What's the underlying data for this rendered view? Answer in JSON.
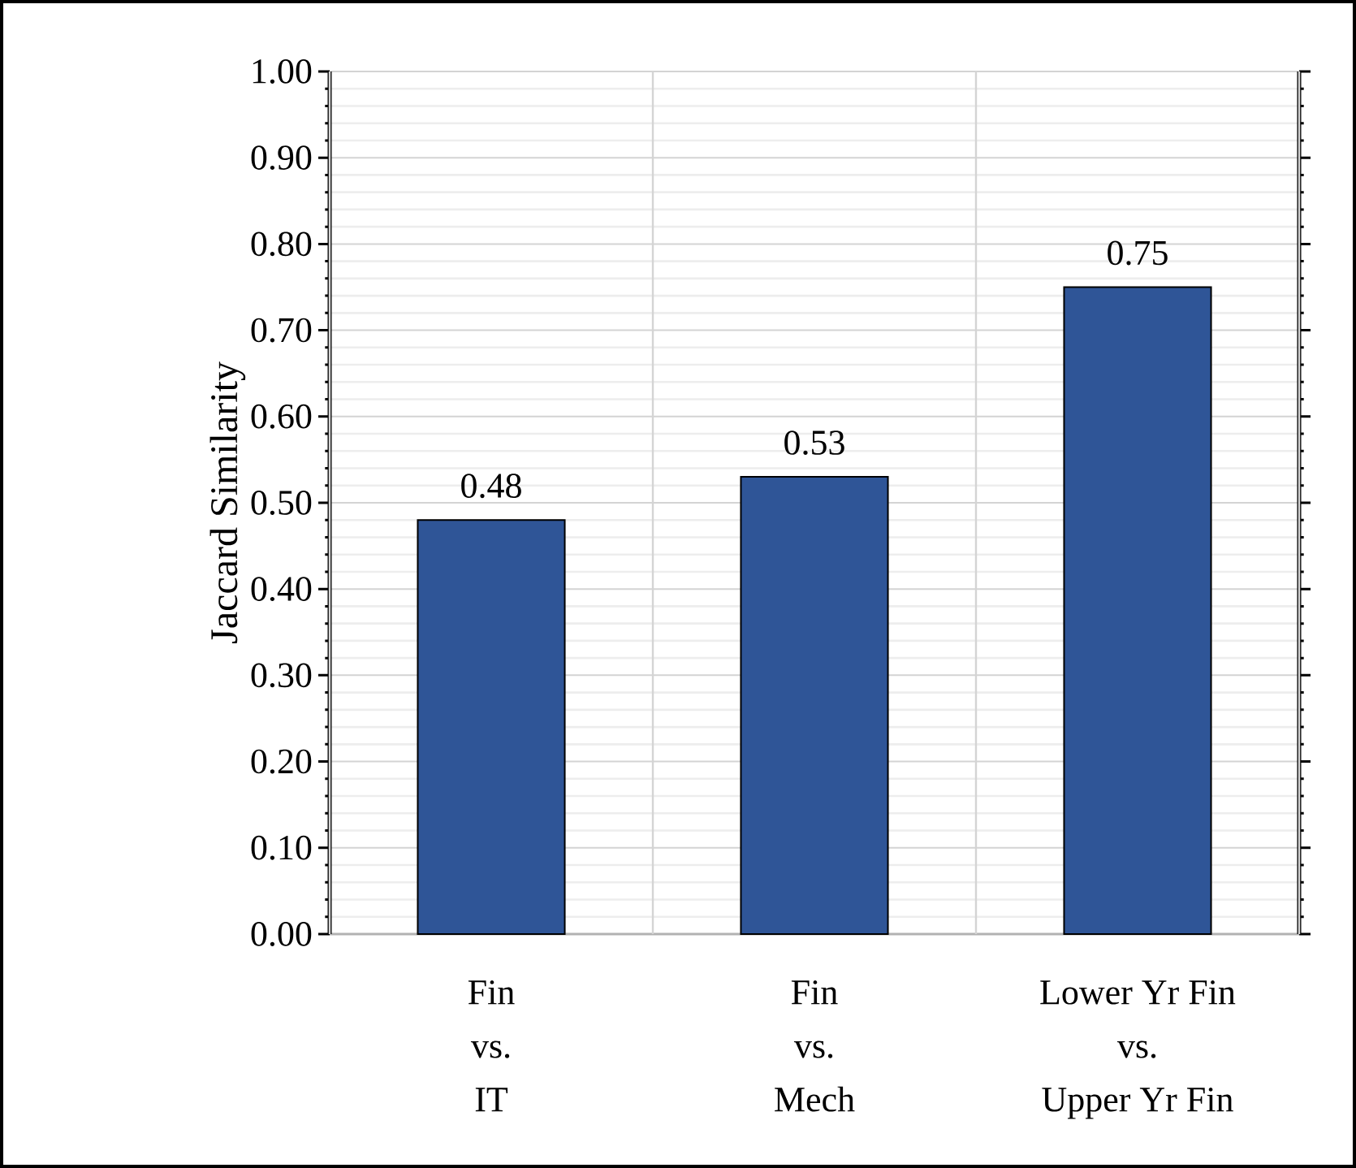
{
  "chart_data": {
    "type": "bar",
    "ylabel": "Jaccard Similarity",
    "categories": [
      "Fin\nvs.\nIT",
      "Fin\nvs.\nMech",
      "Lower Yr Fin\nvs.\nUpper Yr Fin"
    ],
    "values": [
      0.48,
      0.53,
      0.75
    ],
    "color": "#2f5597",
    "ylim": [
      0,
      1
    ],
    "yticks": [
      {
        "value": 0,
        "label": "0.00"
      },
      {
        "value": 0.1,
        "label": "0.10"
      },
      {
        "value": 0.2,
        "label": "0.20"
      },
      {
        "value": 0.3,
        "label": "0.30"
      },
      {
        "value": 0.4,
        "label": "0.40"
      },
      {
        "value": 0.5,
        "label": "0.50"
      },
      {
        "value": 0.6,
        "label": "0.60"
      },
      {
        "value": 0.7,
        "label": "0.70"
      },
      {
        "value": 0.8,
        "label": "0.80"
      },
      {
        "value": 0.9,
        "label": "0.90"
      },
      {
        "value": 1,
        "label": "1.00"
      }
    ],
    "value_labels": [
      "0.48",
      "0.53",
      "0.75"
    ],
    "grid": true
  }
}
